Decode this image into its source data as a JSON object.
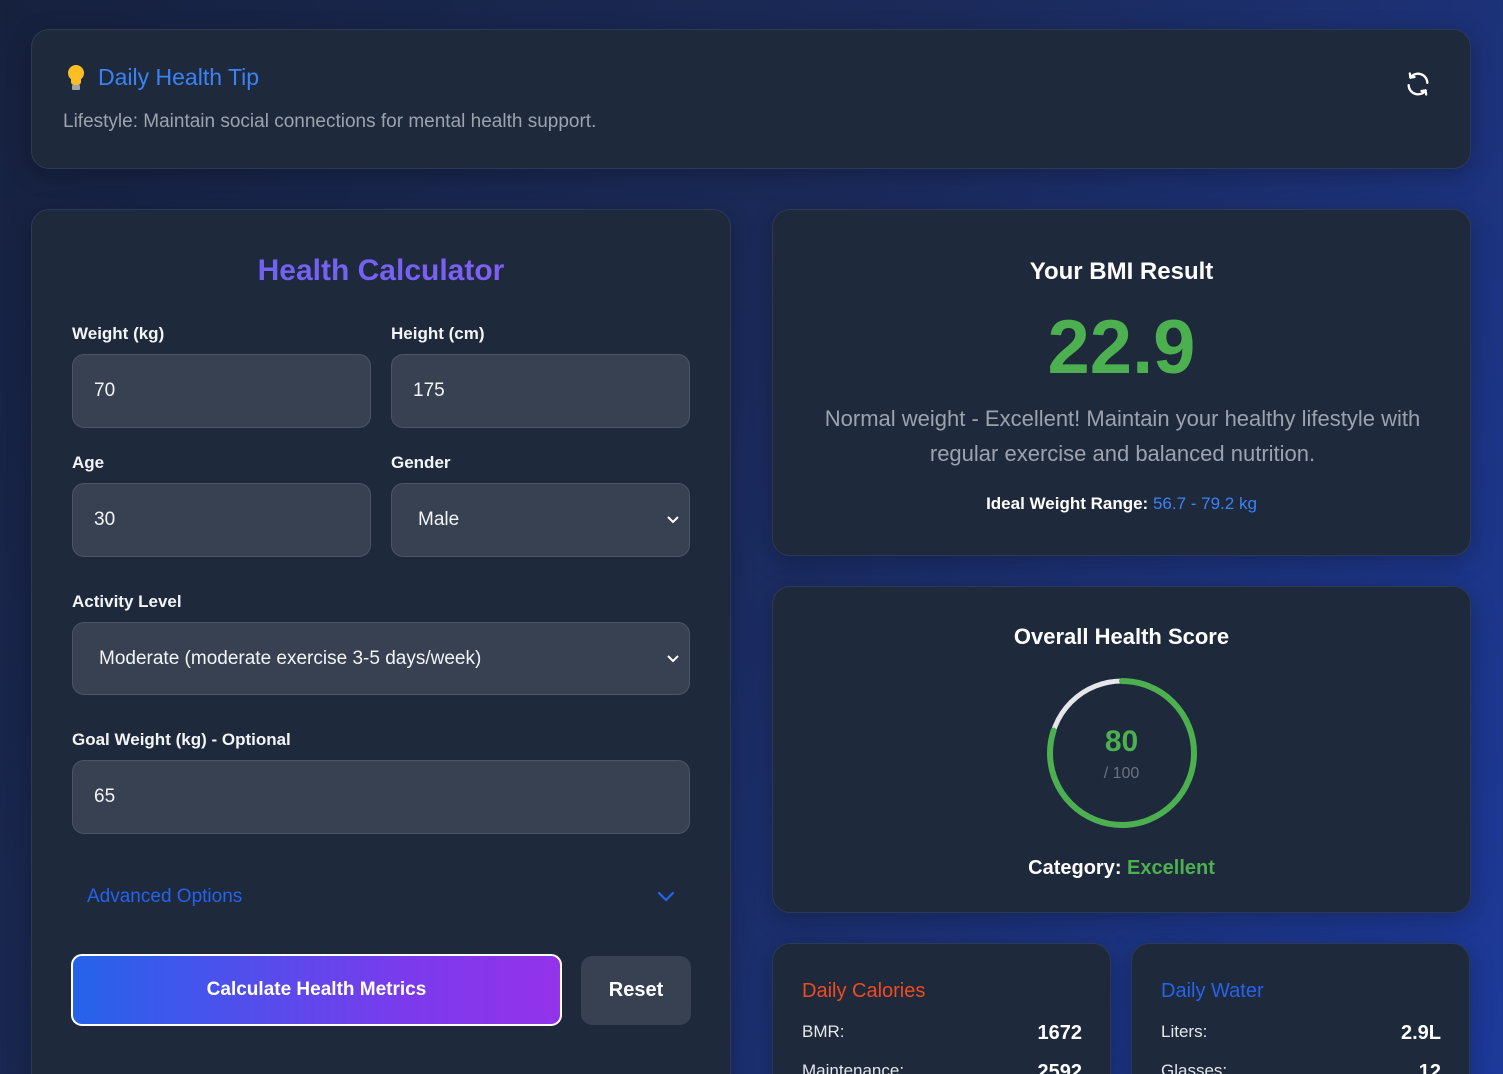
{
  "tip": {
    "title": "Daily Health Tip",
    "text": "Lifestyle: Maintain social connections for mental health support.",
    "icon": "lightbulb-icon",
    "refresh_icon": "refresh-icon"
  },
  "calculator": {
    "title": "Health Calculator",
    "weight": {
      "label": "Weight (kg)",
      "value": "70"
    },
    "height": {
      "label": "Height (cm)",
      "value": "175"
    },
    "age": {
      "label": "Age",
      "value": "30"
    },
    "gender": {
      "label": "Gender",
      "value": "Male"
    },
    "activity": {
      "label": "Activity Level",
      "value": "Moderate (moderate exercise 3-5 days/week)"
    },
    "goal_weight": {
      "label": "Goal Weight (kg) - Optional",
      "value": "65"
    },
    "advanced_label": "Advanced Options",
    "calculate_label": "Calculate Health Metrics",
    "reset_label": "Reset"
  },
  "bmi": {
    "title": "Your BMI Result",
    "value": "22.9",
    "description": "Normal weight - Excellent! Maintain your healthy lifestyle with regular exercise and balanced nutrition.",
    "ideal_label": "Ideal Weight Range:",
    "ideal_value": "56.7 - 79.2 kg",
    "value_color": "#4caf50"
  },
  "score": {
    "title": "Overall Health Score",
    "value": 80,
    "value_text": "80",
    "max_text": "/ 100",
    "category_label": "Category:",
    "category_value": "Excellent",
    "ring_color": "#4caf50"
  },
  "calories": {
    "title": "Daily Calories",
    "title_color": "#ef4b1f",
    "rows": [
      {
        "label": "BMR:",
        "value": "1672"
      },
      {
        "label": "Maintenance:",
        "value": "2592"
      }
    ]
  },
  "water": {
    "title": "Daily Water",
    "title_color": "#2563eb",
    "rows": [
      {
        "label": "Liters:",
        "value": "2.9L"
      },
      {
        "label": "Glasses:",
        "value": "12"
      }
    ]
  },
  "colors": {
    "accent_blue": "#3b82f6",
    "accent_purple": "#8b5cf6",
    "success_green": "#4caf50"
  }
}
